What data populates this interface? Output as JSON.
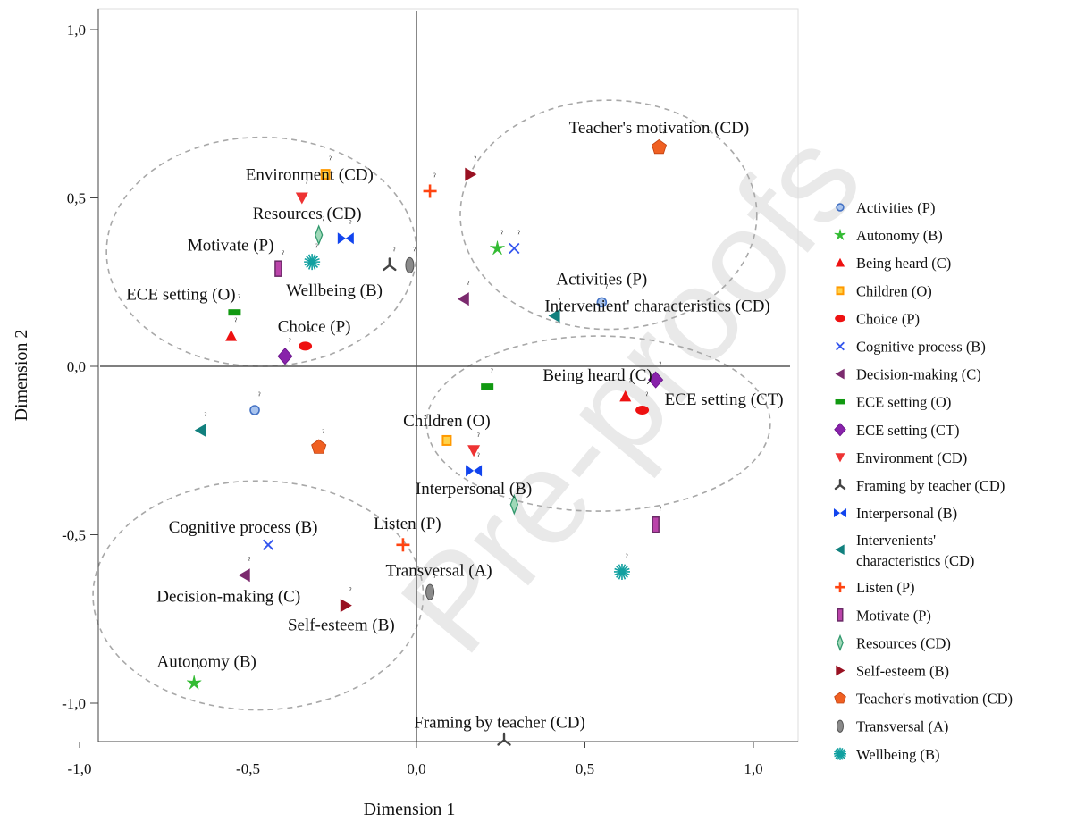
{
  "chart_data": {
    "type": "scatter",
    "xlabel": "Dimension 1",
    "ylabel": "Dimension 2",
    "xlim": [
      -1.1,
      1.12
    ],
    "ylim": [
      -1.12,
      1.07
    ],
    "xticks": [
      {
        "v": -1.0,
        "label": "-1,0"
      },
      {
        "v": -0.5,
        "label": "-0,5"
      },
      {
        "v": 0.0,
        "label": "0,0"
      },
      {
        "v": 0.5,
        "label": "0,5"
      },
      {
        "v": 1.0,
        "label": "1,0"
      }
    ],
    "yticks": [
      {
        "v": 1.0,
        "label": "1,0"
      },
      {
        "v": 0.5,
        "label": "0,5"
      },
      {
        "v": 0.0,
        "label": "0,0"
      },
      {
        "v": -0.5,
        "label": "-0,5"
      },
      {
        "v": -1.0,
        "label": "-1,0"
      }
    ],
    "grid": false,
    "legend_position": "right",
    "watermark": "Pre-proofs",
    "clusters": [
      {
        "cx": -0.46,
        "cy": 0.34,
        "rx": 0.46,
        "ry": 0.34
      },
      {
        "cx": 0.57,
        "cy": 0.45,
        "rx": 0.44,
        "ry": 0.34
      },
      {
        "cx": 0.54,
        "cy": -0.17,
        "rx": 0.51,
        "ry": 0.26
      },
      {
        "cx": -0.47,
        "cy": -0.68,
        "rx": 0.49,
        "ry": 0.34
      }
    ],
    "series": [
      {
        "name": "Activities (P)",
        "marker": "circle",
        "color": "#4472c4",
        "points": [
          {
            "x": -0.48,
            "y": -0.13,
            "label": ""
          },
          {
            "x": 0.55,
            "y": 0.19,
            "label": "Activities (P)"
          }
        ]
      },
      {
        "name": "Autonomy (B)",
        "marker": "star",
        "color": "#33bb33",
        "points": [
          {
            "x": 0.24,
            "y": 0.35,
            "label": ""
          },
          {
            "x": -0.66,
            "y": -0.94,
            "label": "Autonomy (B)"
          }
        ]
      },
      {
        "name": "Being heard (C)",
        "marker": "triangle",
        "color": "#ee1111",
        "points": [
          {
            "x": -0.55,
            "y": 0.09,
            "label": ""
          },
          {
            "x": 0.62,
            "y": -0.09,
            "label": "Being heard (C)"
          }
        ]
      },
      {
        "name": "Children (O)",
        "marker": "square",
        "color": "#ff9900",
        "points": [
          {
            "x": -0.27,
            "y": 0.57,
            "label": ""
          },
          {
            "x": 0.09,
            "y": -0.22,
            "label": "Children (O)"
          }
        ]
      },
      {
        "name": "Choice (P)",
        "marker": "ellipse",
        "color": "#ee1111",
        "points": [
          {
            "x": -0.33,
            "y": 0.06,
            "label": "Choice (P)"
          },
          {
            "x": 0.67,
            "y": -0.13,
            "label": ""
          }
        ]
      },
      {
        "name": "Cognitive process (B)",
        "marker": "x",
        "color": "#3355ee",
        "points": [
          {
            "x": 0.29,
            "y": 0.35,
            "label": ""
          },
          {
            "x": -0.44,
            "y": -0.53,
            "label": "Cognitive process (B)"
          }
        ]
      },
      {
        "name": "Decision-making (C)",
        "marker": "triangle-left",
        "color": "#7b2a6e",
        "points": [
          {
            "x": 0.14,
            "y": 0.2,
            "label": ""
          },
          {
            "x": -0.51,
            "y": -0.62,
            "label": "Decision-making (C)"
          }
        ]
      },
      {
        "name": "ECE setting (O)",
        "marker": "rect",
        "color": "#119911",
        "points": [
          {
            "x": -0.54,
            "y": 0.16,
            "label": "ECE setting (O)"
          },
          {
            "x": 0.21,
            "y": -0.06,
            "label": ""
          }
        ]
      },
      {
        "name": "ECE setting (CT)",
        "marker": "diamond",
        "color": "#8822aa",
        "points": [
          {
            "x": -0.39,
            "y": 0.03,
            "label": ""
          },
          {
            "x": 0.71,
            "y": -0.04,
            "label": "ECE setting (CT)"
          }
        ]
      },
      {
        "name": "Environment (CD)",
        "marker": "triangle-down",
        "color": "#ee3333",
        "points": [
          {
            "x": -0.34,
            "y": 0.5,
            "label": "Environment (CD)"
          },
          {
            "x": 0.17,
            "y": -0.25,
            "label": ""
          }
        ]
      },
      {
        "name": "Framing by teacher (CD)",
        "marker": "tri",
        "color": "#444444",
        "points": [
          {
            "x": -0.08,
            "y": 0.3,
            "label": ""
          },
          {
            "x": 0.26,
            "y": -1.11,
            "label": "Framing by teacher (CD)"
          }
        ]
      },
      {
        "name": "Interpersonal (B)",
        "marker": "bowtie",
        "color": "#1144ee",
        "points": [
          {
            "x": -0.21,
            "y": 0.38,
            "label": ""
          },
          {
            "x": 0.17,
            "y": -0.31,
            "label": "Interpersonal (B)"
          }
        ]
      },
      {
        "name": "Intervenients' characteristics (CD)",
        "marker": "triangle-left",
        "color": "#11807e",
        "points": [
          {
            "x": 0.41,
            "y": 0.15,
            "label": "Intervenient' characteristics (CD)"
          },
          {
            "x": -0.64,
            "y": -0.19,
            "label": ""
          }
        ]
      },
      {
        "name": "Listen (P)",
        "marker": "plus",
        "color": "#ff4411",
        "points": [
          {
            "x": 0.04,
            "y": 0.52,
            "label": ""
          },
          {
            "x": -0.04,
            "y": -0.53,
            "label": "Listen (P)"
          }
        ]
      },
      {
        "name": "Motivate (P)",
        "marker": "bar",
        "color": "#bb44aa",
        "points": [
          {
            "x": -0.41,
            "y": 0.29,
            "label": "Motivate (P)"
          },
          {
            "x": 0.71,
            "y": -0.47,
            "label": ""
          }
        ]
      },
      {
        "name": "Resources (CD)",
        "marker": "thin-diamond",
        "color": "#33996e",
        "points": [
          {
            "x": -0.29,
            "y": 0.39,
            "label": "Resources (CD)"
          },
          {
            "x": 0.29,
            "y": -0.41,
            "label": ""
          }
        ]
      },
      {
        "name": "Self-esteem (B)",
        "marker": "triangle-right",
        "color": "#991122",
        "points": [
          {
            "x": 0.16,
            "y": 0.57,
            "label": ""
          },
          {
            "x": -0.21,
            "y": -0.71,
            "label": "Self-esteem (B)"
          }
        ]
      },
      {
        "name": "Teacher's motivation (CD)",
        "marker": "pentagon",
        "color": "#f06022",
        "points": [
          {
            "x": 0.72,
            "y": 0.65,
            "label": "Teacher's motivation (CD)"
          },
          {
            "x": -0.29,
            "y": -0.24,
            "label": ""
          }
        ]
      },
      {
        "name": "Transversal (A)",
        "marker": "oval",
        "color": "#777777",
        "points": [
          {
            "x": -0.02,
            "y": 0.3,
            "label": ""
          },
          {
            "x": 0.04,
            "y": -0.67,
            "label": "Transversal (A)"
          }
        ]
      },
      {
        "name": "Wellbeing (B)",
        "marker": "asterisk",
        "color": "#11a0a0",
        "points": [
          {
            "x": -0.31,
            "y": 0.31,
            "label": "Wellbeing (B)"
          },
          {
            "x": 0.61,
            "y": -0.61,
            "label": ""
          }
        ]
      }
    ]
  }
}
